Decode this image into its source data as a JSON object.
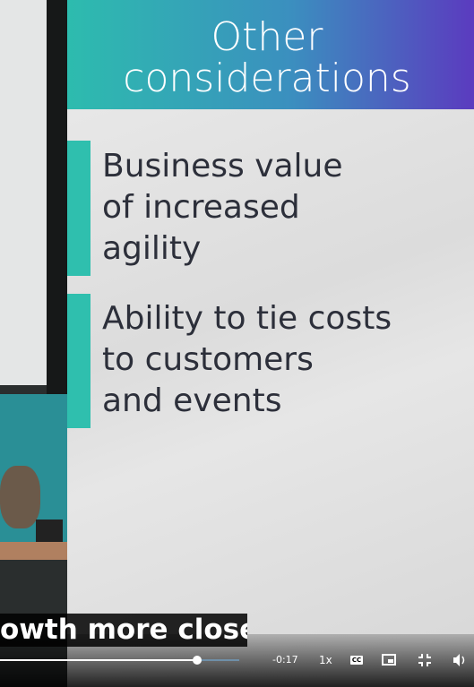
{
  "slide": {
    "title_lines": [
      "Other",
      "considerations"
    ],
    "bullets": [
      {
        "lines": [
          "Business value",
          "of increased",
          "agility"
        ]
      },
      {
        "lines": [
          "Ability to tie costs",
          "to customers",
          "and events"
        ]
      }
    ]
  },
  "caption": "owth more closely.",
  "controls": {
    "time_remaining": "-0:17",
    "speed": "1x",
    "cc": "CC"
  }
}
